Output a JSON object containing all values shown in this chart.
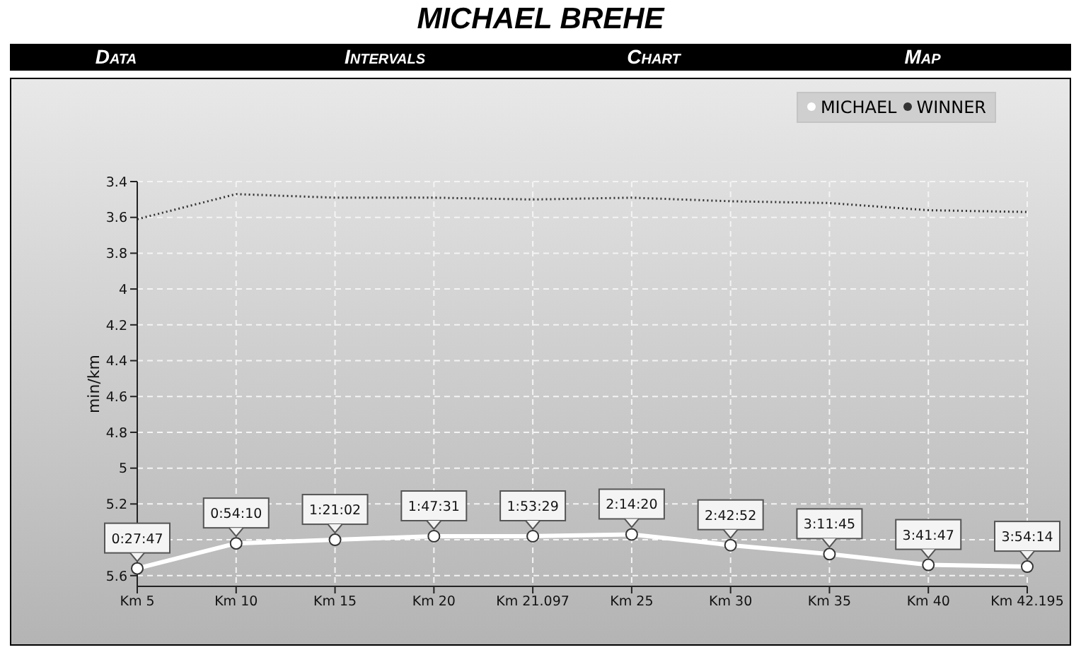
{
  "chart_data": {
    "type": "line",
    "title": "MICHAEL BREHE",
    "ylabel": "min/km",
    "annotations": [
      "Data",
      "Intervals",
      "Chart",
      "Map",
      {
        "text": "0:27:47",
        "x": "Km 5",
        "y": 5.56
      },
      {
        "text": "0:54:10",
        "x": "Km 10",
        "y": 5.42
      },
      {
        "text": "1:21:02",
        "x": "Km 15",
        "y": 5.4
      },
      {
        "text": "1:47:31",
        "x": "Km 20",
        "y": 5.38
      },
      {
        "text": "1:53:29",
        "x": "Km 21.097",
        "y": 5.38
      },
      {
        "text": "2:14:20",
        "x": "Km 25",
        "y": 5.37
      },
      {
        "text": "2:42:52",
        "x": "Km 30",
        "y": 5.43
      },
      {
        "text": "3:11:45",
        "x": "Km 35",
        "y": 5.48
      },
      {
        "text": "3:41:47",
        "x": "Km 40",
        "y": 5.54
      },
      {
        "text": "3:54:14",
        "x": "Km 42.195",
        "y": 5.55
      }
    ],
    "categories": [
      "Km 5",
      "Km 10",
      "Km 15",
      "Km 20",
      "Km 21.097",
      "Km 25",
      "Km 30",
      "Km 35",
      "Km 40",
      "Km 42.195"
    ],
    "series": [
      {
        "name": "MICHAEL",
        "color": "#ffffff",
        "marker": "circle",
        "line_style": "solid",
        "values": [
          5.56,
          5.42,
          5.4,
          5.38,
          5.38,
          5.37,
          5.43,
          5.48,
          5.54,
          5.55
        ]
      },
      {
        "name": "WINNER",
        "color": "#333333",
        "marker": "none",
        "line_style": "dotted",
        "values": [
          3.61,
          3.47,
          3.49,
          3.49,
          3.5,
          3.49,
          3.51,
          3.52,
          3.56,
          3.57
        ]
      }
    ],
    "ylim": [
      5.66,
      3.4
    ],
    "yticks": [
      3.4,
      3.6,
      3.8,
      4,
      4.2,
      4.4,
      4.6,
      4.8,
      5,
      5.2,
      {
        "value": 5.4,
        "label": null
      },
      5.6
    ],
    "grid": true,
    "legend": "top right"
  }
}
